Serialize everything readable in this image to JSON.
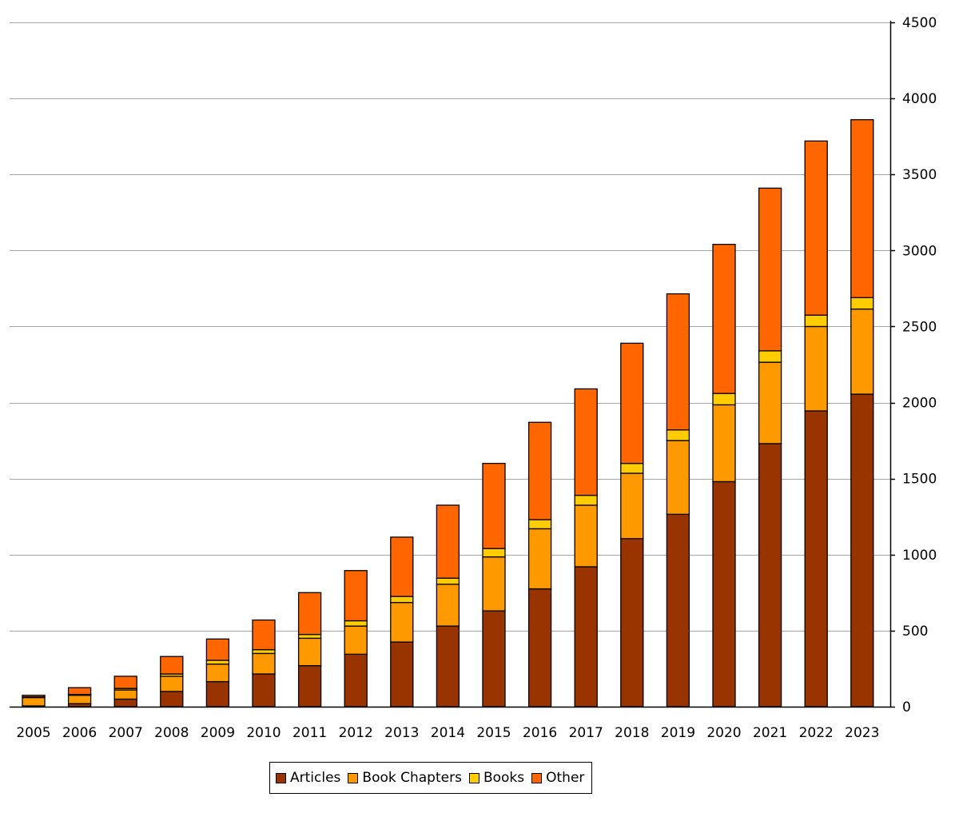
{
  "chart_data": {
    "type": "bar",
    "stacked": true,
    "title": "",
    "xlabel": "",
    "ylabel": "",
    "ylim": [
      0,
      4500
    ],
    "yticks": [
      0,
      500,
      1000,
      1500,
      2000,
      2500,
      3000,
      3500,
      4000,
      4500
    ],
    "y_axis_side": "right",
    "grid": true,
    "legend_position": "bottom",
    "categories": [
      "2005",
      "2006",
      "2007",
      "2008",
      "2009",
      "2010",
      "2011",
      "2012",
      "2013",
      "2014",
      "2015",
      "2016",
      "2017",
      "2018",
      "2019",
      "2020",
      "2021",
      "2022",
      "2023"
    ],
    "series": [
      {
        "name": "Articles",
        "color": "#993300",
        "values": [
          5,
          20,
          50,
          100,
          165,
          215,
          270,
          345,
          425,
          530,
          630,
          775,
          920,
          1105,
          1265,
          1480,
          1730,
          1945,
          2055
        ]
      },
      {
        "name": "Book Chapters",
        "color": "#FF9900",
        "values": [
          55,
          55,
          60,
          100,
          115,
          135,
          180,
          185,
          260,
          275,
          355,
          395,
          405,
          430,
          485,
          505,
          535,
          555,
          560
        ]
      },
      {
        "name": "Books",
        "color": "#FFCC00",
        "values": [
          5,
          5,
          10,
          15,
          25,
          25,
          25,
          35,
          40,
          40,
          55,
          60,
          65,
          65,
          70,
          75,
          75,
          75,
          75
        ]
      },
      {
        "name": "Other",
        "color": "#FF6600",
        "values": [
          10,
          45,
          80,
          115,
          140,
          195,
          275,
          330,
          390,
          480,
          560,
          640,
          700,
          790,
          895,
          980,
          1070,
          1145,
          1170
        ]
      }
    ]
  }
}
